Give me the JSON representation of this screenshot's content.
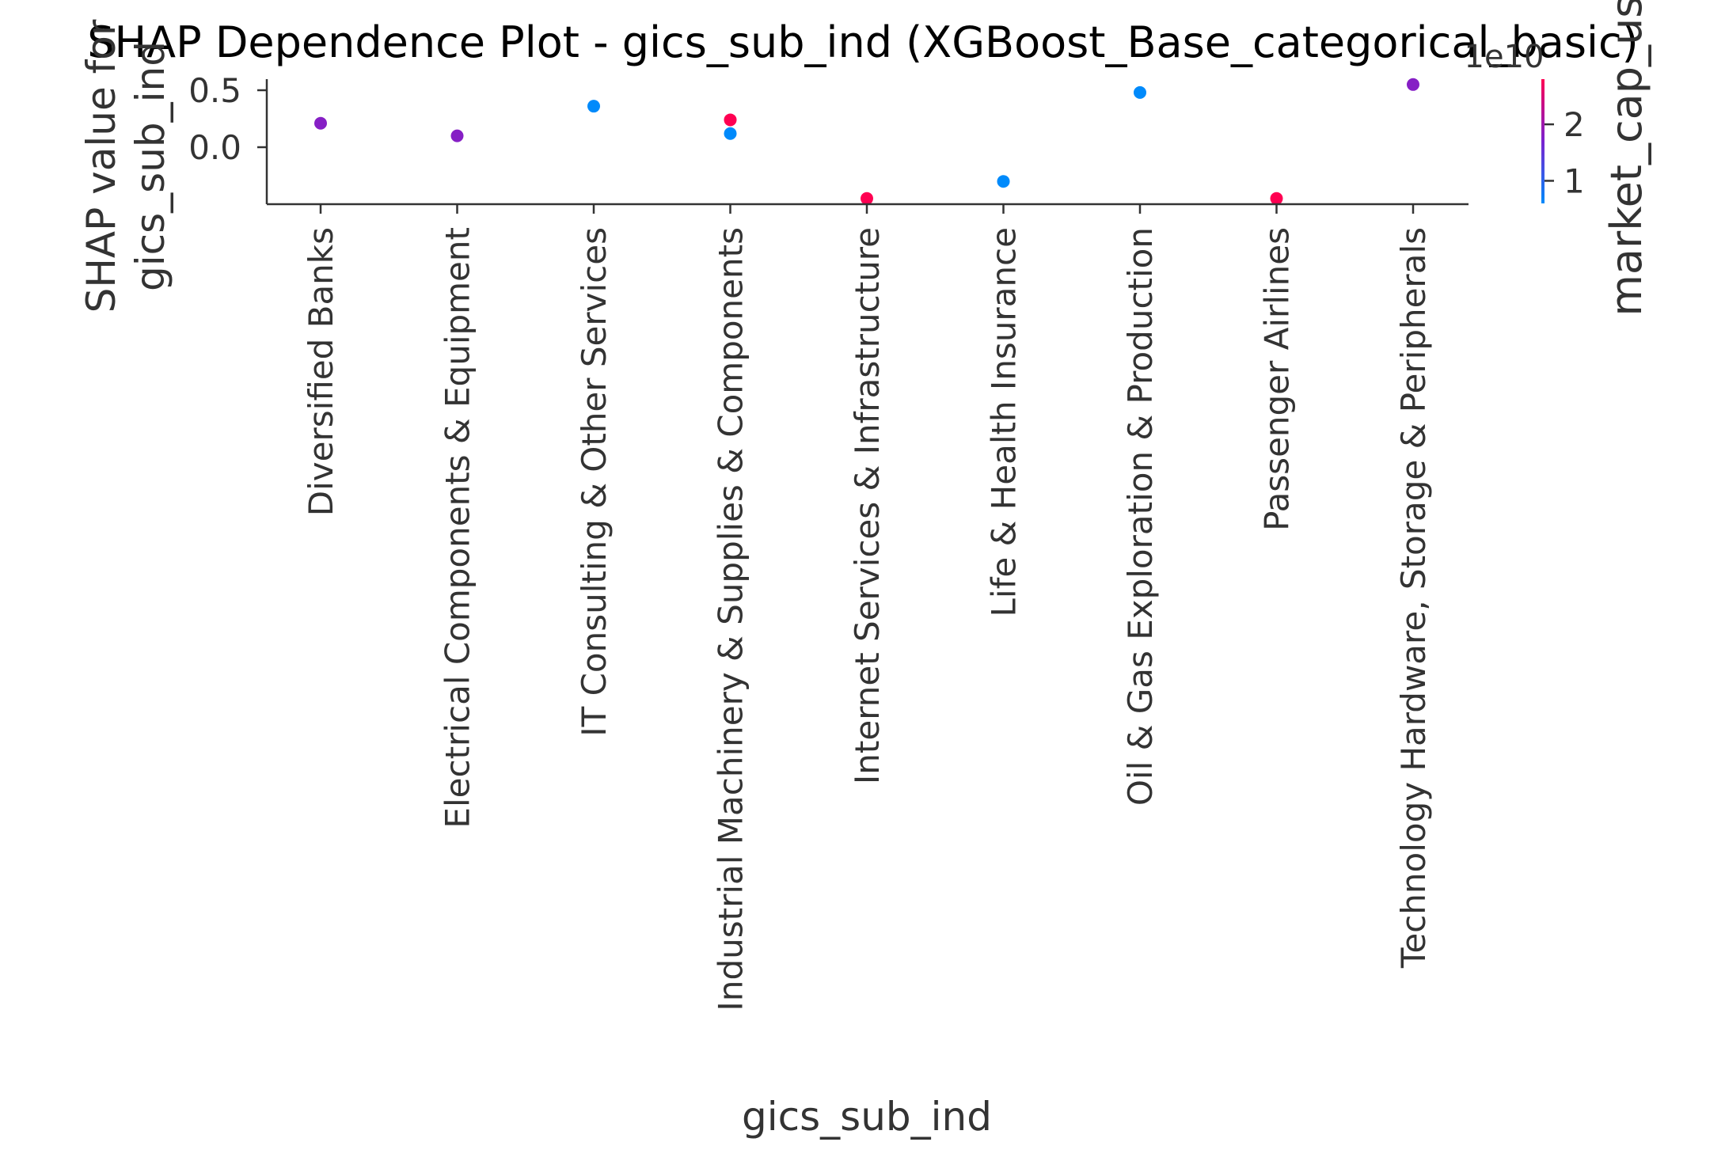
{
  "chart_data": {
    "type": "scatter",
    "title": "SHAP Dependence Plot - gics_sub_ind (XGBoost_Base_categorical_basic)",
    "xlabel": "gics_sub_ind",
    "ylabel_line1": "SHAP value for",
    "ylabel_line2": "gics_sub_ind",
    "categories": [
      "Diversified Banks",
      "Electrical Components & Equipment",
      "IT Consulting & Other Services",
      "Industrial Machinery & Supplies & Components",
      "Internet Services & Infrastructure",
      "Life & Health Insurance",
      "Oil & Gas Exploration & Production",
      "Passenger Airlines",
      "Technology Hardware, Storage & Peripherals"
    ],
    "yticks": [
      {
        "value": 0.5,
        "label": "0.5"
      },
      {
        "value": 0.0,
        "label": "0.0"
      }
    ],
    "ylim": [
      -0.5,
      0.6
    ],
    "points": [
      {
        "category": 0,
        "y": 0.21,
        "market_cap": 18000000000.0
      },
      {
        "category": 1,
        "y": 0.1,
        "market_cap": 18000000000.0
      },
      {
        "category": 2,
        "y": 0.36,
        "market_cap": 6000000000.0
      },
      {
        "category": 3,
        "y": 0.24,
        "market_cap": 28000000000.0
      },
      {
        "category": 3,
        "y": 0.12,
        "market_cap": 6000000000.0
      },
      {
        "category": 4,
        "y": -0.45,
        "market_cap": 28000000000.0
      },
      {
        "category": 5,
        "y": -0.3,
        "market_cap": 6000000000.0
      },
      {
        "category": 6,
        "y": 0.48,
        "market_cap": 6000000000.0
      },
      {
        "category": 7,
        "y": -0.45,
        "market_cap": 28000000000.0
      },
      {
        "category": 8,
        "y": 0.55,
        "market_cap": 18000000000.0
      }
    ],
    "colorbar": {
      "label": "market_cap_usd",
      "offset_text": "1e10",
      "range": [
        6000000000.0,
        28000000000.0
      ],
      "ticks": [
        {
          "value": 20000000000.0,
          "label": "2"
        },
        {
          "value": 10000000000.0,
          "label": "1"
        }
      ],
      "colors": [
        "#008afb",
        "#7a22d0",
        "#ff0052"
      ]
    },
    "grid": false,
    "legend": "colorbar-right"
  }
}
